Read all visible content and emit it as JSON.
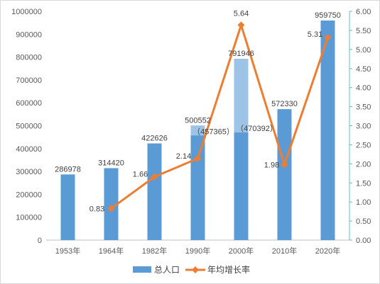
{
  "chart_data": {
    "type": "bar",
    "categories": [
      "1953年",
      "1964年",
      "1982年",
      "1990年",
      "2000年",
      "2010年",
      "2020年"
    ],
    "series": [
      {
        "name": "总人口",
        "type": "bar",
        "axis": "left",
        "values": [
          286978,
          314420,
          422626,
          500552,
          791946,
          572330,
          959750
        ],
        "labels": [
          "286978",
          "314420",
          "422626",
          "500552",
          "791946",
          "572330",
          "959750"
        ],
        "color": "#5b9bd5"
      },
      {
        "name": "年均增长率",
        "type": "line",
        "axis": "right",
        "values": [
          null,
          0.83,
          1.66,
          2.14,
          5.64,
          1.98,
          5.31
        ],
        "labels": [
          "",
          "0.83",
          "1.66",
          "2.14",
          "5.64",
          "1.98",
          "5.31"
        ],
        "color": "#ed7d31"
      }
    ],
    "overlay_bars": [
      {
        "category": "1990年",
        "value": 457365,
        "label": "（457365）"
      },
      {
        "category": "2000年",
        "value": 470392,
        "label": "（470392）"
      }
    ],
    "overlay_color": "#9dc3e6",
    "y_left": {
      "min": 0,
      "max": 1000000,
      "ticks": [
        "0",
        "100000",
        "200000",
        "300000",
        "400000",
        "500000",
        "600000",
        "700000",
        "800000",
        "900000",
        "1000000"
      ]
    },
    "y_right": {
      "min": 0,
      "max": 6,
      "ticks": [
        "0.00",
        "0.50",
        "1.00",
        "1.50",
        "2.00",
        "2.50",
        "3.00",
        "3.50",
        "4.00",
        "4.50",
        "5.00",
        "5.50",
        "6.00"
      ]
    },
    "gridlines": false,
    "legend_position": "bottom"
  }
}
